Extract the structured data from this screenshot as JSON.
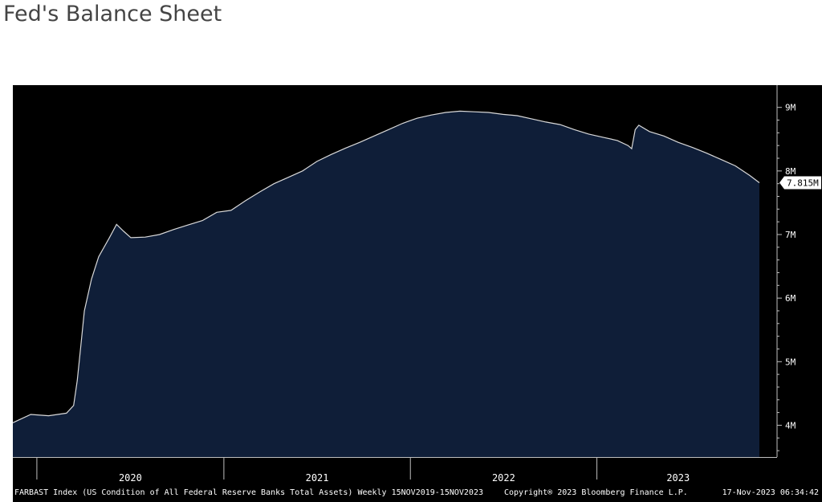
{
  "page": {
    "title": "Fed's Balance Sheet"
  },
  "colors": {
    "background": "#000000",
    "area_fill": "#0f1e38",
    "line": "#d9d9d9",
    "axis": "#bfbfbf",
    "text": "#ffffff"
  },
  "chart_data": {
    "type": "area",
    "title": "",
    "xlabel": "",
    "ylabel": "",
    "y_unit": "M",
    "ylim": [
      3.5,
      9.35
    ],
    "y_ticks": [
      4,
      5,
      6,
      7,
      8,
      9
    ],
    "y_tick_labels": [
      "4M",
      "5M",
      "6M",
      "7M",
      "8M",
      "9M"
    ],
    "x_range": [
      "2019-11-15",
      "2023-11-15"
    ],
    "x_year_labels": [
      "2020",
      "2021",
      "2022",
      "2023"
    ],
    "grid": false,
    "last_value_label": "7.815M",
    "series": [
      {
        "x": [
          "2019-11-15",
          "2019-12-20",
          "2020-01-24",
          "2020-02-28",
          "2020-03-13",
          "2020-03-20",
          "2020-03-27",
          "2020-04-03",
          "2020-04-17",
          "2020-05-01",
          "2020-05-22",
          "2020-06-05",
          "2020-06-19",
          "2020-07-03",
          "2020-07-31",
          "2020-08-28",
          "2020-09-25",
          "2020-10-23",
          "2020-11-20",
          "2020-12-18",
          "2021-01-15",
          "2021-02-12",
          "2021-03-12",
          "2021-04-09",
          "2021-05-07",
          "2021-06-04",
          "2021-07-02",
          "2021-07-30",
          "2021-08-27",
          "2021-09-24",
          "2021-10-22",
          "2021-11-19",
          "2021-12-17",
          "2022-01-14",
          "2022-02-11",
          "2022-03-11",
          "2022-04-08",
          "2022-05-06",
          "2022-06-03",
          "2022-07-01",
          "2022-07-29",
          "2022-08-26",
          "2022-09-23",
          "2022-10-21",
          "2022-11-18",
          "2022-12-16",
          "2023-01-13",
          "2023-02-10",
          "2023-03-03",
          "2023-03-10",
          "2023-03-17",
          "2023-03-24",
          "2023-04-14",
          "2023-05-12",
          "2023-06-09",
          "2023-07-07",
          "2023-08-04",
          "2023-09-01",
          "2023-09-29",
          "2023-10-27",
          "2023-11-15"
        ],
        "y": [
          4.04,
          4.17,
          4.15,
          4.19,
          4.31,
          4.7,
          5.25,
          5.8,
          6.3,
          6.65,
          6.95,
          7.16,
          7.05,
          6.95,
          6.96,
          7.0,
          7.08,
          7.15,
          7.22,
          7.35,
          7.38,
          7.53,
          7.67,
          7.8,
          7.9,
          8.0,
          8.15,
          8.26,
          8.36,
          8.45,
          8.55,
          8.65,
          8.75,
          8.83,
          8.88,
          8.92,
          8.94,
          8.93,
          8.92,
          8.89,
          8.87,
          8.82,
          8.77,
          8.73,
          8.65,
          8.58,
          8.53,
          8.48,
          8.4,
          8.35,
          8.65,
          8.72,
          8.62,
          8.55,
          8.45,
          8.37,
          8.28,
          8.18,
          8.08,
          7.93,
          7.815
        ]
      }
    ]
  },
  "footer": {
    "index_description": "FARBAST Index (US Condition of All Federal Reserve Banks Total Assets) Weekly 15NOV2019-15NOV2023",
    "copyright": "Copyright® 2023 Bloomberg Finance L.P.",
    "timestamp": "17-Nov-2023 06:34:42"
  }
}
